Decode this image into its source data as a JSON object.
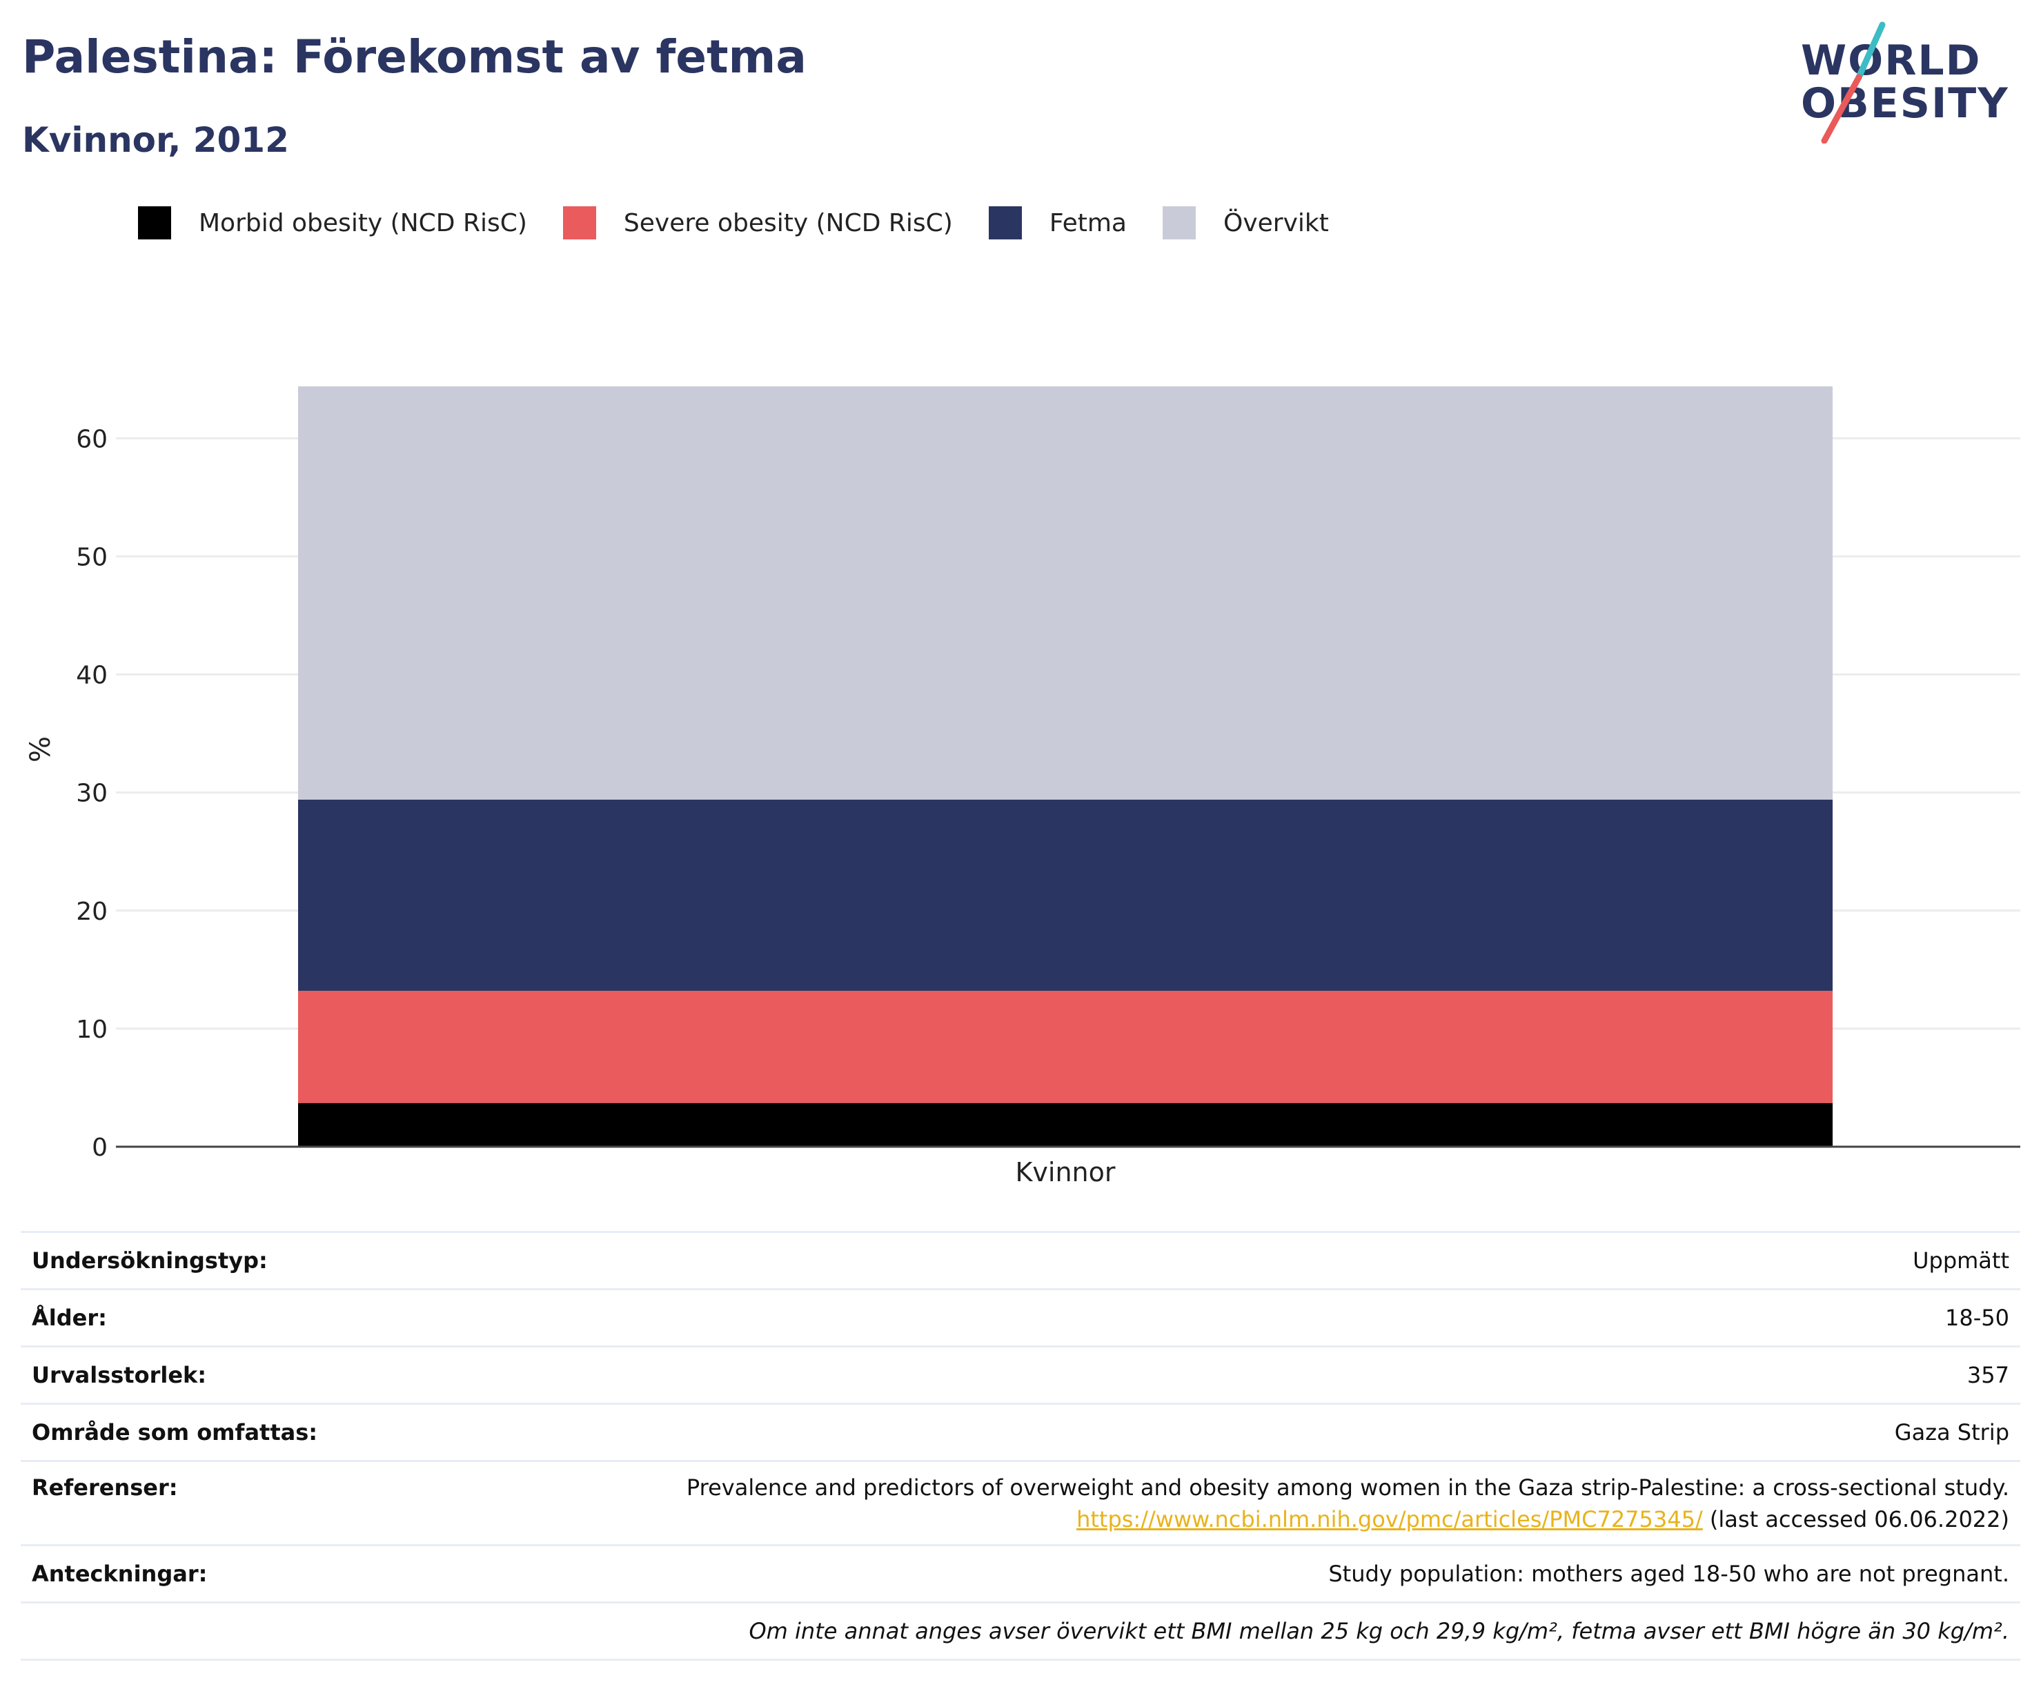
{
  "header": {
    "title": "Palestina: Förekomst av fetma",
    "subtitle": "Kvinnor, 2012"
  },
  "logo": {
    "line1": "WORLD",
    "line2": "OBESITY",
    "colors": {
      "text": "#2b3562",
      "slash_top": "#3cbcc4",
      "slash_bottom": "#ea5a5a"
    }
  },
  "legend": [
    {
      "label": "Morbid obesity (NCD RisC)",
      "color": "#000000"
    },
    {
      "label": "Severe obesity (NCD RisC)",
      "color": "#ea5b5d"
    },
    {
      "label": "Fetma",
      "color": "#2b3562"
    },
    {
      "label": "Övervikt",
      "color": "#c9ccd8"
    }
  ],
  "chart_data": {
    "type": "bar",
    "stacked": true,
    "categories": [
      "Kvinnor"
    ],
    "series": [
      {
        "name": "Morbid obesity (NCD RisC)",
        "values": [
          3.7
        ],
        "color": "#000000"
      },
      {
        "name": "Severe obesity (NCD RisC)",
        "values": [
          9.5
        ],
        "color": "#ea5b5d"
      },
      {
        "name": "Fetma",
        "values": [
          16.2
        ],
        "color": "#2b3562"
      },
      {
        "name": "Övervikt",
        "values": [
          35.0
        ],
        "color": "#c9ccd8"
      }
    ],
    "title": "Palestina: Förekomst av fetma",
    "subtitle": "Kvinnor, 2012",
    "xlabel": "",
    "ylabel": "%",
    "ylim": [
      0,
      64.4
    ],
    "yticks": [
      0,
      10,
      20,
      30,
      40,
      50,
      60
    ],
    "grid": true,
    "legend_position": "top-left"
  },
  "meta": {
    "rows": [
      {
        "key": "Undersökningstyp:",
        "value": "Uppmätt"
      },
      {
        "key": "Ålder:",
        "value": "18-50"
      },
      {
        "key": "Urvalsstorlek:",
        "value": "357"
      },
      {
        "key": "Område som omfattas:",
        "value": "Gaza Strip"
      }
    ],
    "references": {
      "key": "Referenser:",
      "text": "Prevalence and predictors of overweight and obesity among women in the Gaza strip-Palestine: a cross-sectional study.",
      "link": "https://www.ncbi.nlm.nih.gov/pmc/articles/PMC7275345/",
      "accessed": "(last accessed 06.06.2022)"
    },
    "notes": {
      "key": "Anteckningar:",
      "value": "Study population: mothers aged 18-50 who are not pregnant."
    },
    "footnote": "Om inte annat anges avser övervikt ett BMI mellan 25 kg och 29,9 kg/m², fetma avser ett BMI högre än 30 kg/m²."
  }
}
